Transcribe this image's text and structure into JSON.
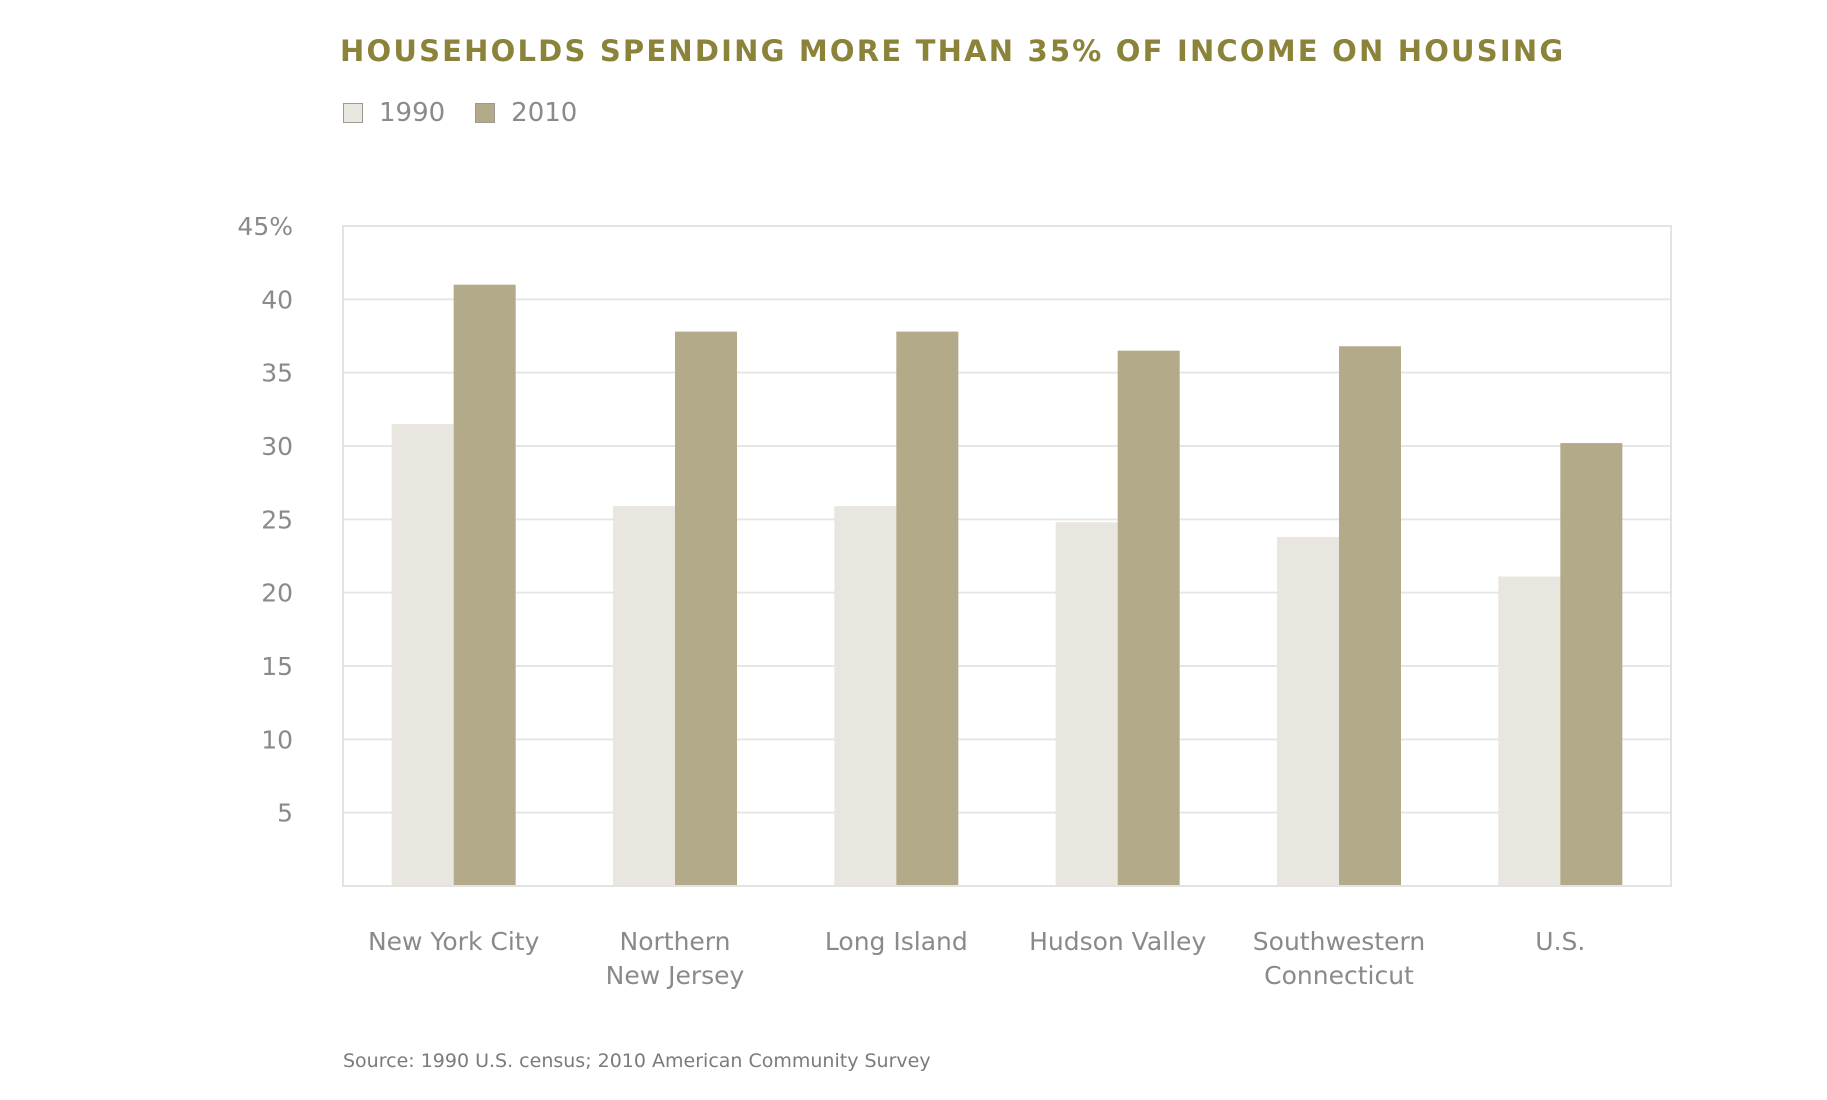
{
  "chart_data": {
    "type": "bar",
    "title": "HOUSEHOLDS SPENDING MORE THAN 35% OF INCOME ON HOUSING",
    "xlabel": "",
    "ylabel": "",
    "categories": [
      [
        "New York City"
      ],
      [
        "Northern",
        "New Jersey"
      ],
      [
        "Long Island"
      ],
      [
        "Hudson Valley"
      ],
      [
        "Southwestern",
        "Connecticut"
      ],
      [
        "U.S."
      ]
    ],
    "series": [
      {
        "name": "1990",
        "color": "#e8e6df",
        "values": [
          31.5,
          25.9,
          25.9,
          24.8,
          23.8,
          21.1
        ]
      },
      {
        "name": "2010",
        "color": "#b3aa89",
        "values": [
          41.0,
          37.8,
          37.8,
          36.5,
          36.8,
          30.2
        ]
      }
    ],
    "ylim": [
      0,
      45
    ],
    "yticks": [
      {
        "value": 45,
        "label": "45%"
      },
      {
        "value": 40,
        "label": "40"
      },
      {
        "value": 35,
        "label": "35"
      },
      {
        "value": 30,
        "label": "30"
      },
      {
        "value": 25,
        "label": "25"
      },
      {
        "value": 20,
        "label": "20"
      },
      {
        "value": 15,
        "label": "15"
      },
      {
        "value": 10,
        "label": "10"
      },
      {
        "value": 5,
        "label": "5"
      }
    ],
    "grid": true,
    "legend_position": "top-left",
    "source": "Source: 1990 U.S. census; 2010 American Community Survey"
  },
  "colors": {
    "title": "#8a8339",
    "axis_text": "#8a8a8a",
    "gridline": "#e6e6e6",
    "frame": "#e3e3e3"
  }
}
